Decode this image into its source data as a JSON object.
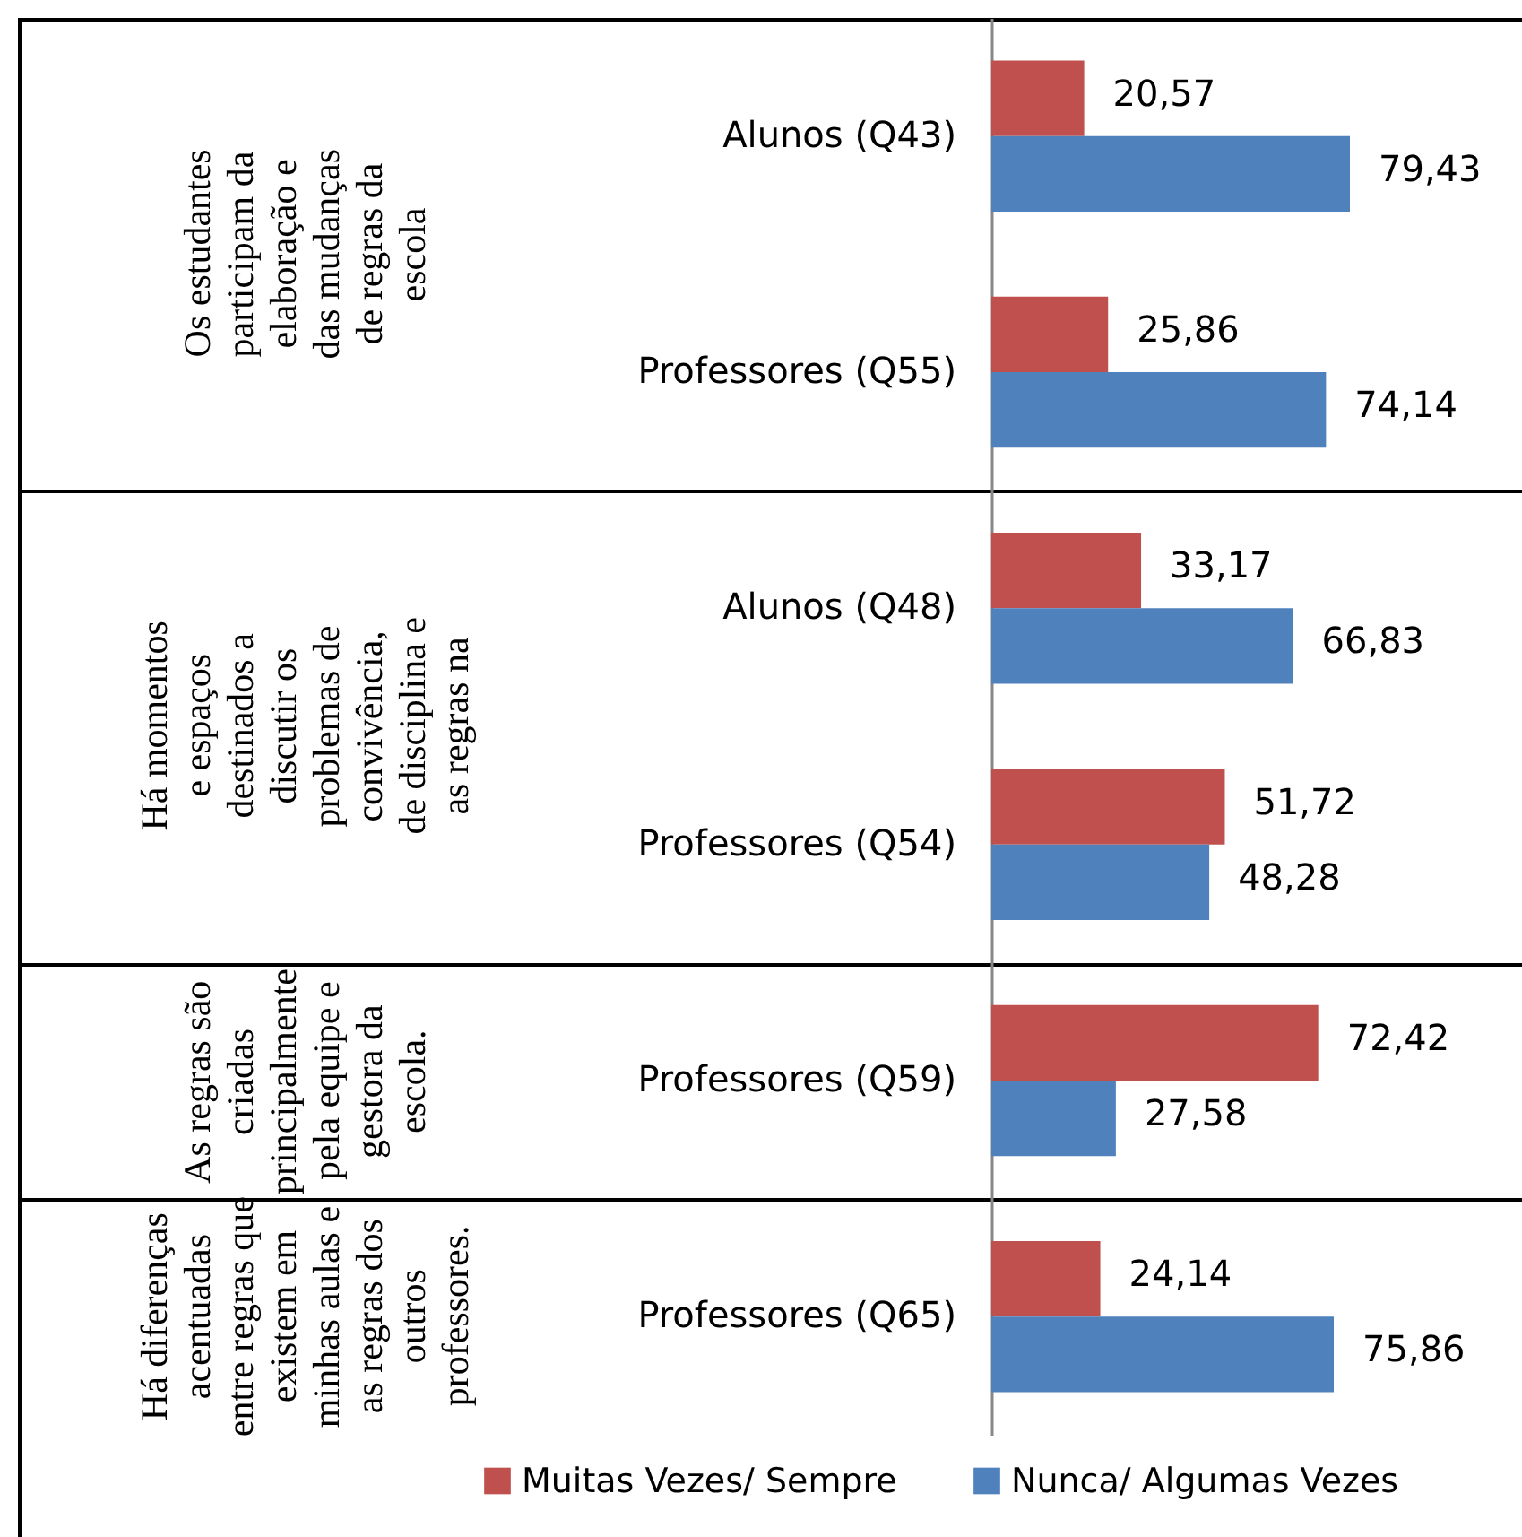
{
  "chart_data": {
    "type": "bar",
    "orientation": "horizontal",
    "categories": [
      "Alunos (Q43)",
      "Professores (Q55)",
      "Alunos (Q48)",
      "Professores (Q54)",
      "Professores (Q59)",
      "Professores (Q65)"
    ],
    "series": [
      {
        "name": "Muitas Vezes/ Sempre",
        "color": "#c0504d",
        "values": [
          20.57,
          25.86,
          33.17,
          51.72,
          72.42,
          24.14
        ],
        "value_labels": [
          "20,57",
          "25,86",
          "33,17",
          "51,72",
          "72,42",
          "24,14"
        ]
      },
      {
        "name": "Nunca/ Algumas Vezes",
        "color": "#4f81bd",
        "values": [
          79.43,
          74.14,
          66.83,
          48.28,
          27.58,
          75.86
        ],
        "value_labels": [
          "79,43",
          "74,14",
          "66,83",
          "48,28",
          "27,58",
          "75,86"
        ]
      }
    ],
    "tick_labels": "y",
    "legend": "bottom",
    "annotations": [
      "Os estudantes\nparticipam da\nelaboração e\ndas mudanças\nde regras da\nescola",
      "Há momentos\ne espaços\ndestinados a\ndiscutir os\nproblemas de\nconvivência,\nde disciplina e\nas regras na",
      "As regras são\ncriadas\nprincipalmente\npela equipe e\ngestora da\nescola.",
      "Há diferenças\nacentuadas\nentre regras que\nexistem em\nminhas aulas e\nas regras dos\noutros\nprofessores."
    ]
  }
}
